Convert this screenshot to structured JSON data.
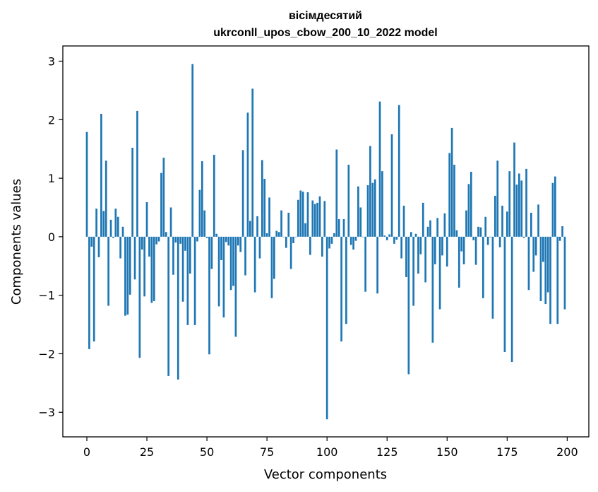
{
  "chart_data": {
    "type": "bar",
    "title": "вісімдесятий",
    "subtitle": "ukrconll_upos_cbow_200_10_2022 model",
    "xlabel": "Vector components",
    "ylabel": "Components values",
    "xlim": [
      -10,
      209
    ],
    "ylim": [
      -3.42,
      3.26
    ],
    "xticks": [
      0,
      25,
      50,
      75,
      100,
      125,
      150,
      175,
      200
    ],
    "xtick_labels": [
      "0",
      "25",
      "50",
      "75",
      "100",
      "125",
      "150",
      "175",
      "200"
    ],
    "yticks": [
      -3,
      -2,
      -1,
      0,
      1,
      2,
      3
    ],
    "ytick_labels": [
      "−3",
      "−2",
      "−1",
      "0",
      "1",
      "2",
      "3"
    ],
    "grid": false,
    "legend": "none",
    "bar_color": "#1f77b4",
    "x": [
      0,
      1,
      2,
      3,
      4,
      5,
      6,
      7,
      8,
      9,
      10,
      11,
      12,
      13,
      14,
      15,
      16,
      17,
      18,
      19,
      20,
      21,
      22,
      23,
      24,
      25,
      26,
      27,
      28,
      29,
      30,
      31,
      32,
      33,
      34,
      35,
      36,
      37,
      38,
      39,
      40,
      41,
      42,
      43,
      44,
      45,
      46,
      47,
      48,
      49,
      50,
      51,
      52,
      53,
      54,
      55,
      56,
      57,
      58,
      59,
      60,
      61,
      62,
      63,
      64,
      65,
      66,
      67,
      68,
      69,
      70,
      71,
      72,
      73,
      74,
      75,
      76,
      77,
      78,
      79,
      80,
      81,
      82,
      83,
      84,
      85,
      86,
      87,
      88,
      89,
      90,
      91,
      92,
      93,
      94,
      95,
      96,
      97,
      98,
      99,
      100,
      101,
      102,
      103,
      104,
      105,
      106,
      107,
      108,
      109,
      110,
      111,
      112,
      113,
      114,
      115,
      116,
      117,
      118,
      119,
      120,
      121,
      122,
      123,
      124,
      125,
      126,
      127,
      128,
      129,
      130,
      131,
      132,
      133,
      134,
      135,
      136,
      137,
      138,
      139,
      140,
      141,
      142,
      143,
      144,
      145,
      146,
      147,
      148,
      149,
      150,
      151,
      152,
      153,
      154,
      155,
      156,
      157,
      158,
      159,
      160,
      161,
      162,
      163,
      164,
      165,
      166,
      167,
      168,
      169,
      170,
      171,
      172,
      173,
      174,
      175,
      176,
      177,
      178,
      179,
      180,
      181,
      182,
      183,
      184,
      185,
      186,
      187,
      188,
      189,
      190,
      191,
      192,
      193,
      194,
      195,
      196,
      197,
      198,
      199
    ],
    "values": [
      1.79,
      -1.92,
      -0.17,
      -1.79,
      0.48,
      -0.35,
      2.1,
      0.44,
      1.3,
      -1.18,
      0.29,
      -0.02,
      0.48,
      0.34,
      -0.37,
      0.17,
      -1.35,
      -1.33,
      -0.99,
      1.52,
      -0.73,
      2.15,
      -2.07,
      -0.22,
      -1.02,
      0.59,
      -0.34,
      -1.13,
      -1.1,
      -0.13,
      -0.08,
      1.09,
      1.35,
      0.08,
      -2.38,
      0.5,
      -0.65,
      -0.1,
      -2.44,
      -0.12,
      -1.11,
      -0.24,
      -1.51,
      -0.63,
      2.95,
      -1.51,
      -0.08,
      0.8,
      1.29,
      0.45,
      -0.02,
      -2.01,
      -0.55,
      1.4,
      0.05,
      -1.19,
      -0.4,
      -1.38,
      -0.09,
      -0.15,
      -0.91,
      -0.84,
      -1.71,
      -0.15,
      -0.26,
      1.48,
      -0.66,
      2.12,
      0.27,
      2.53,
      -0.95,
      0.35,
      -0.37,
      1.31,
      0.99,
      0.06,
      0.67,
      -1.05,
      -0.72,
      0.1,
      0.08,
      0.45,
      0.0,
      -0.19,
      0.41,
      -0.55,
      -0.11,
      0.0,
      0.63,
      0.79,
      0.77,
      0.23,
      0.76,
      -0.31,
      0.62,
      0.56,
      0.58,
      0.69,
      -0.34,
      0.61,
      -3.12,
      -0.2,
      -0.12,
      0.06,
      1.49,
      0.3,
      -1.79,
      0.3,
      -1.49,
      1.23,
      -0.14,
      -0.22,
      -0.07,
      0.86,
      0.5,
      0.0,
      -0.94,
      0.88,
      1.55,
      0.92,
      0.98,
      -0.97,
      2.31,
      1.12,
      0.02,
      -0.06,
      0.04,
      1.75,
      -0.12,
      -0.05,
      2.25,
      -0.37,
      0.53,
      -0.69,
      -2.35,
      0.08,
      -1.18,
      0.05,
      -0.63,
      -0.3,
      0.58,
      -0.78,
      0.17,
      0.28,
      -1.81,
      -0.47,
      0.32,
      -1.24,
      -0.32,
      0.4,
      -0.51,
      1.43,
      1.86,
      1.23,
      0.11,
      -0.87,
      -0.25,
      -0.47,
      0.45,
      0.9,
      1.11,
      -0.06,
      -0.48,
      0.17,
      0.16,
      -1.05,
      0.34,
      -0.14,
      0.0,
      -1.4,
      0.7,
      1.3,
      -0.18,
      0.53,
      -1.97,
      0.43,
      1.12,
      -2.14,
      1.61,
      0.89,
      1.08,
      0.96,
      -0.02,
      1.16,
      -0.91,
      0.41,
      -0.6,
      -0.32,
      0.55,
      -1.1,
      -0.43,
      -1.15,
      -0.95,
      -1.49,
      0.92,
      1.03,
      -1.49,
      -0.07,
      0.18,
      -1.24
    ]
  }
}
